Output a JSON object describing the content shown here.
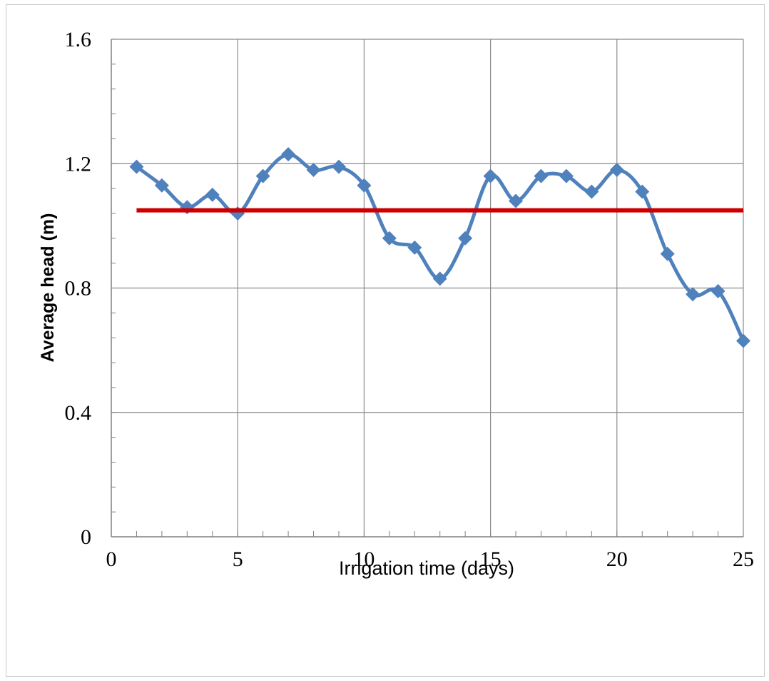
{
  "chart_data": {
    "type": "line",
    "title": "",
    "xlabel": "Irrigation time (days)",
    "ylabel": "Average head (m)",
    "xlim": [
      0,
      25
    ],
    "ylim": [
      0,
      1.6
    ],
    "x_ticks": [
      "0",
      "5",
      "10",
      "15",
      "20",
      "25"
    ],
    "y_ticks": [
      "0",
      "0.4",
      "0.8",
      "1.2",
      "1.6"
    ],
    "grid": true,
    "legend": "none",
    "series": [
      {
        "color": "#4f81bd",
        "marker": "diamond",
        "x": [
          1,
          2,
          3,
          4,
          5,
          6,
          7,
          8,
          9,
          10,
          11,
          12,
          13,
          14,
          15,
          16,
          17,
          18,
          19,
          20,
          21,
          22,
          23,
          24,
          25
        ],
        "y": [
          1.19,
          1.13,
          1.06,
          1.1,
          1.04,
          1.16,
          1.23,
          1.18,
          1.19,
          1.13,
          0.96,
          0.93,
          0.83,
          0.96,
          1.16,
          1.08,
          1.16,
          1.16,
          1.11,
          1.18,
          1.11,
          0.91,
          0.78,
          0.79,
          0.63
        ]
      },
      {
        "color": "#cc0000",
        "marker": "none",
        "x": [
          1,
          25
        ],
        "y": [
          1.05,
          1.05
        ]
      }
    ]
  }
}
